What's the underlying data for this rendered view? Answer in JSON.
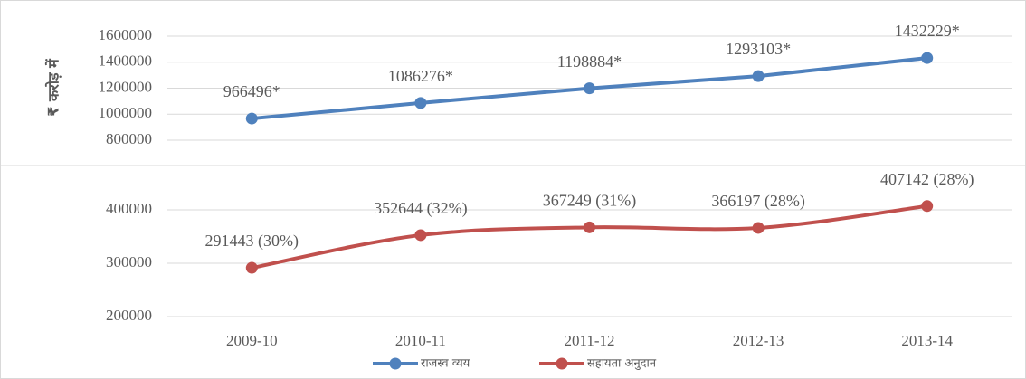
{
  "chart_data": [
    {
      "type": "line",
      "y_label": "₹ करोड़ में",
      "series": [
        {
          "name": "राजस्व व्यय",
          "color": "#4f81bd",
          "values": [
            966496,
            1086276,
            1198884,
            1293103,
            1432229
          ],
          "value_labels": [
            "966496*",
            "1086276*",
            "1198884*",
            "1293103*",
            "1432229*"
          ]
        }
      ],
      "ylim": [
        800000,
        1800000
      ],
      "yticks": [
        800000,
        1000000,
        1200000,
        1400000,
        1600000
      ],
      "grid": true,
      "smooth": false
    },
    {
      "type": "line",
      "categories": [
        "2009-10",
        "2010-11",
        "2011-12",
        "2012-13",
        "2013-14"
      ],
      "series": [
        {
          "name": "सहायता अनुदान",
          "color": "#c0504d",
          "values": [
            291443,
            352644,
            367249,
            366197,
            407142
          ],
          "value_labels": [
            "291443 (30%)",
            "352644 (32%)",
            "367249 (31%)",
            "366197 (28%)",
            "407142 (28%)"
          ]
        }
      ],
      "ylim": [
        200000,
        480000
      ],
      "yticks": [
        200000,
        300000,
        400000
      ],
      "grid": true,
      "smooth": true,
      "legend": "bottom"
    }
  ]
}
